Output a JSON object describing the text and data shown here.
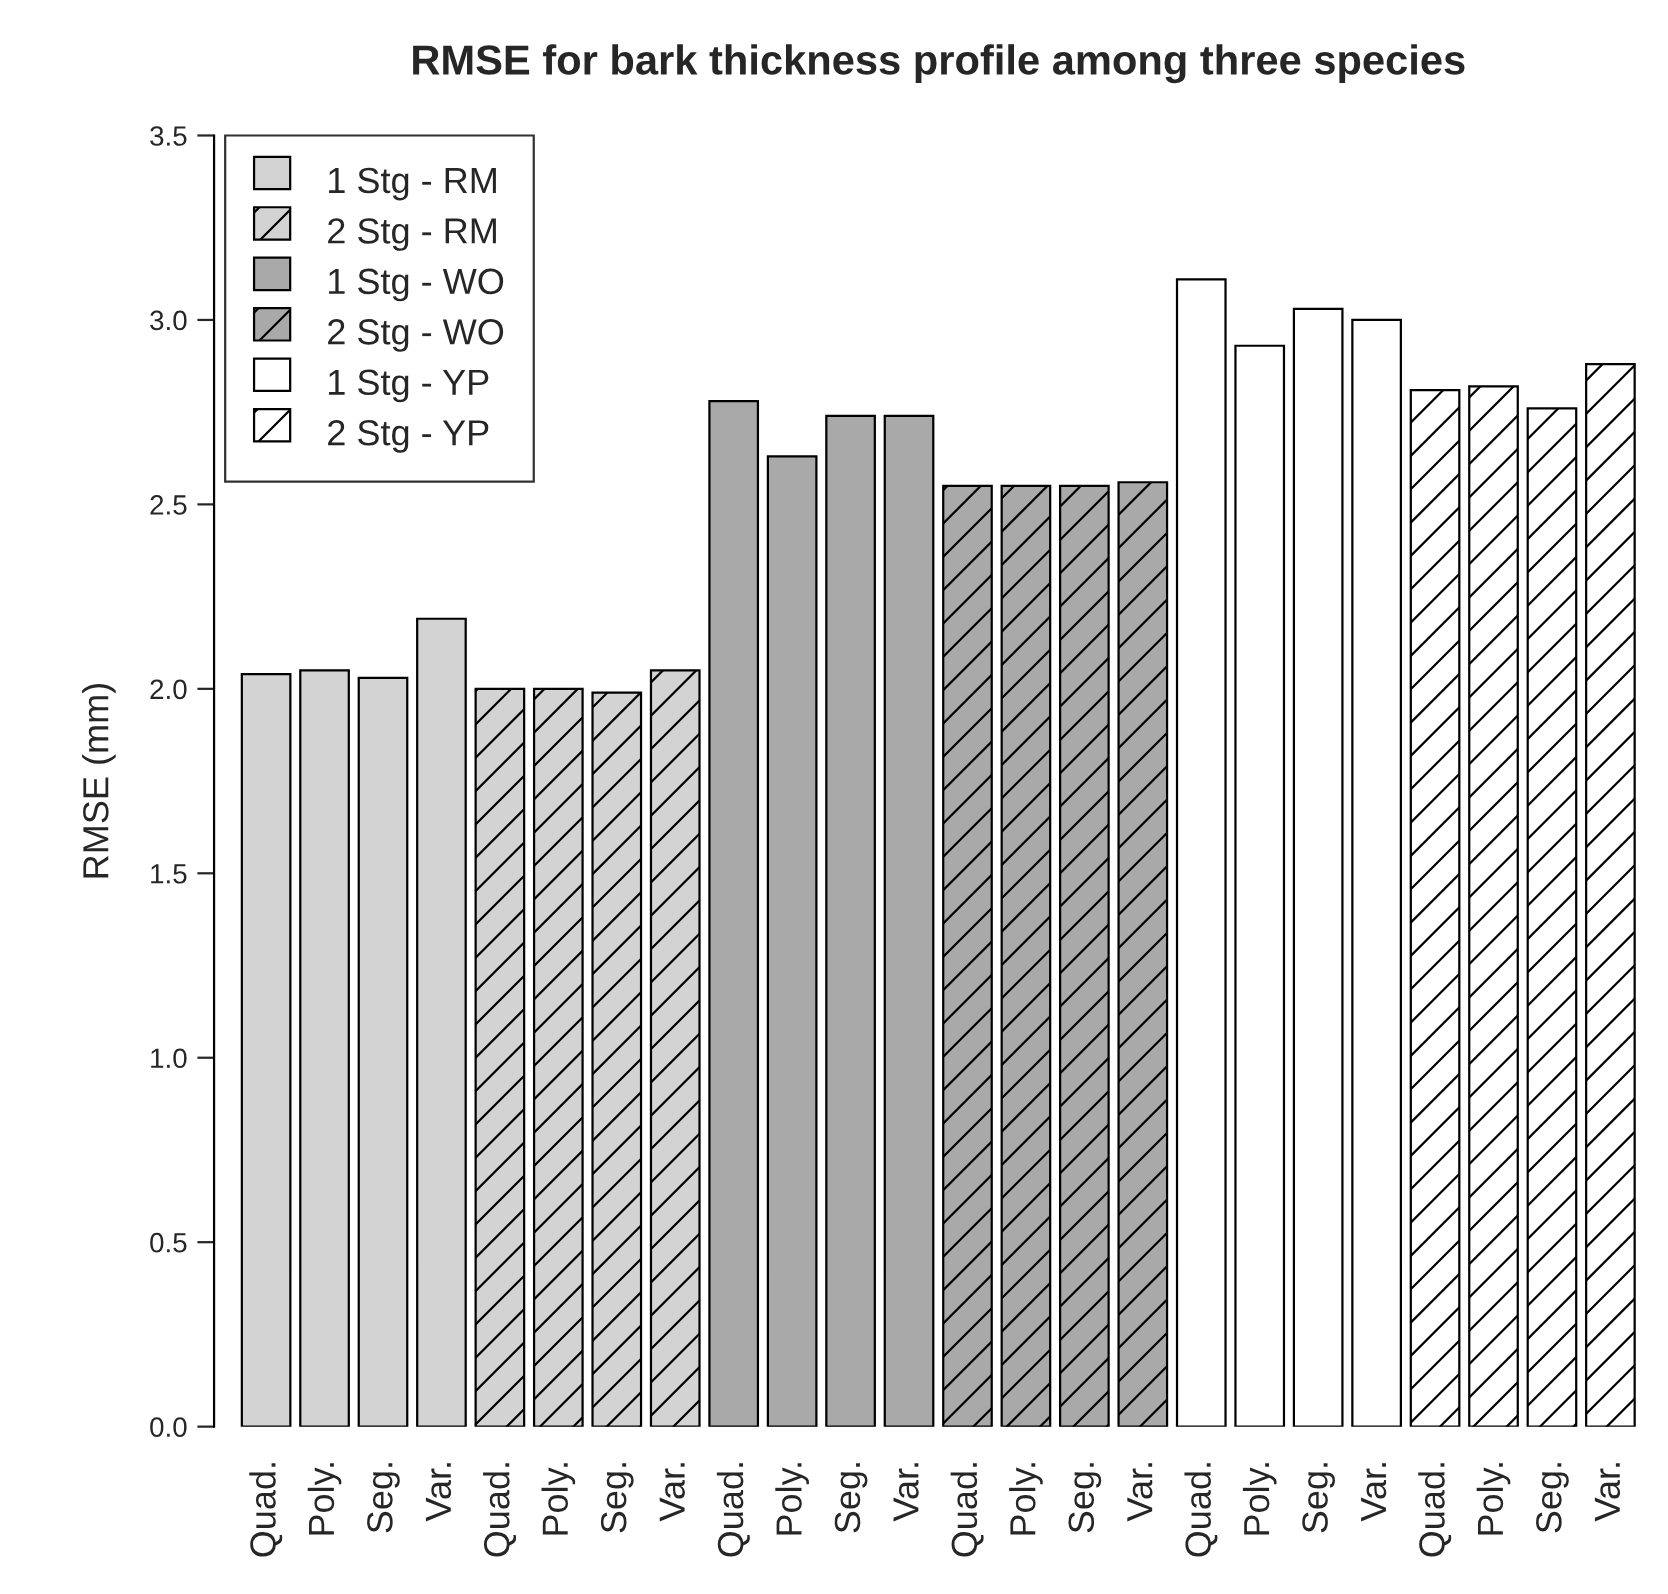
{
  "chart_data": {
    "type": "bar",
    "title": "RMSE for bark thickness profile among three species",
    "ylabel": "RMSE (mm)",
    "categories": [
      "Quad.",
      "Poly.",
      "Seg.",
      "Var.",
      "Quad.",
      "Poly.",
      "Seg.",
      "Var.",
      "Quad.",
      "Poly.",
      "Seg.",
      "Var.",
      "Quad.",
      "Poly.",
      "Seg.",
      "Var.",
      "Quad.",
      "Poly.",
      "Seg.",
      "Var.",
      "Quad.",
      "Poly.",
      "Seg.",
      "Var."
    ],
    "series": [
      {
        "name": "1 Stg - RM",
        "color": "#d3d3d3",
        "values": [
          2.04,
          2.05,
          2.03,
          2.19,
          null,
          null,
          null,
          null,
          null,
          null,
          null,
          null,
          null,
          null,
          null,
          null,
          null,
          null,
          null,
          null,
          null,
          null,
          null,
          null
        ]
      },
      {
        "name": "2 Stg - RM",
        "color": "#d3d3d3",
        "values": [
          null,
          null,
          null,
          null,
          2.0,
          2.0,
          1.99,
          2.05,
          null,
          null,
          null,
          null,
          null,
          null,
          null,
          null,
          null,
          null,
          null,
          null,
          null,
          null,
          null,
          null
        ]
      },
      {
        "name": "1 Stg - WO",
        "color": "#a9a9a9",
        "values": [
          null,
          null,
          null,
          null,
          null,
          null,
          null,
          null,
          2.78,
          2.63,
          2.74,
          2.74,
          null,
          null,
          null,
          null,
          null,
          null,
          null,
          null,
          null,
          null,
          null,
          null
        ]
      },
      {
        "name": "2 Stg - WO",
        "color": "#a9a9a9",
        "values": [
          null,
          null,
          null,
          null,
          null,
          null,
          null,
          null,
          null,
          null,
          null,
          null,
          2.55,
          2.55,
          2.55,
          2.56,
          null,
          null,
          null,
          null,
          null,
          null,
          null,
          null
        ]
      },
      {
        "name": "1 Stg - YP",
        "color": "#ffffff",
        "values": [
          null,
          null,
          null,
          null,
          null,
          null,
          null,
          null,
          null,
          null,
          null,
          null,
          null,
          null,
          null,
          null,
          3.11,
          2.93,
          3.03,
          3.0,
          null,
          null,
          null,
          null
        ]
      },
      {
        "name": "2 Stg - YP",
        "color": "#ffffff",
        "values": [
          null,
          null,
          null,
          null,
          null,
          null,
          null,
          null,
          null,
          null,
          null,
          null,
          null,
          null,
          null,
          null,
          null,
          null,
          null,
          null,
          2.81,
          2.82,
          2.76,
          2.88
        ]
      }
    ],
    "ylim": [
      0,
      3.5
    ],
    "yticks": [
      {
        "value": 0,
        "label": "0.0"
      },
      {
        "value": 0.5,
        "label": "0.5"
      },
      {
        "value": 1,
        "label": "1.0"
      },
      {
        "value": 1.5,
        "label": "1.5"
      },
      {
        "value": 2,
        "label": "2.0"
      },
      {
        "value": 2.5,
        "label": "2.5"
      },
      {
        "value": 3,
        "label": "3.0"
      },
      {
        "value": 3.5,
        "label": "3.5"
      }
    ],
    "legend": "top left"
  }
}
